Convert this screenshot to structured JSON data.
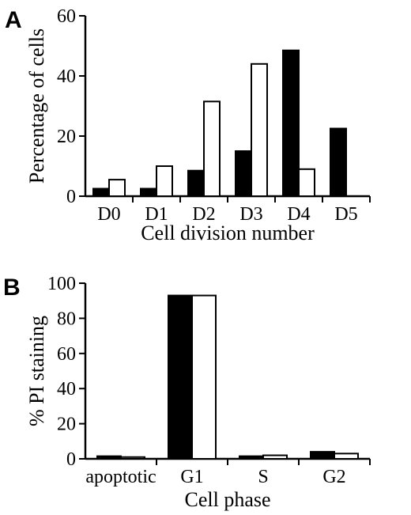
{
  "figure": {
    "panels": [
      {
        "letter": "A"
      },
      {
        "letter": "B"
      }
    ]
  },
  "chart_data": [
    {
      "type": "bar",
      "panel": "A",
      "categories": [
        "D0",
        "D1",
        "D2",
        "D3",
        "D4",
        "D5"
      ],
      "series": [
        {
          "fill": "#000000",
          "values": [
            2.5,
            2.5,
            8.5,
            15,
            48.5,
            22.5
          ]
        },
        {
          "fill": "#ffffff",
          "values": [
            5.5,
            10,
            31.5,
            44,
            9,
            null
          ]
        }
      ],
      "xlabel": "Cell division number",
      "ylabel": "Percentage of cells",
      "ylim": [
        0,
        60
      ],
      "yticks": [
        0,
        20,
        40,
        60
      ],
      "grid": false,
      "legend": "none"
    },
    {
      "type": "bar",
      "panel": "B",
      "categories": [
        "apoptotic",
        "G1",
        "S",
        "G2"
      ],
      "series": [
        {
          "fill": "#000000",
          "values": [
            1.5,
            93,
            1.5,
            4
          ]
        },
        {
          "fill": "#ffffff",
          "values": [
            1,
            93,
            2,
            3
          ]
        }
      ],
      "xlabel": "Cell phase",
      "ylabel": "% PI staining",
      "ylim": [
        0,
        100
      ],
      "yticks": [
        0,
        20,
        40,
        60,
        80,
        100
      ],
      "grid": false,
      "legend": "none"
    }
  ]
}
